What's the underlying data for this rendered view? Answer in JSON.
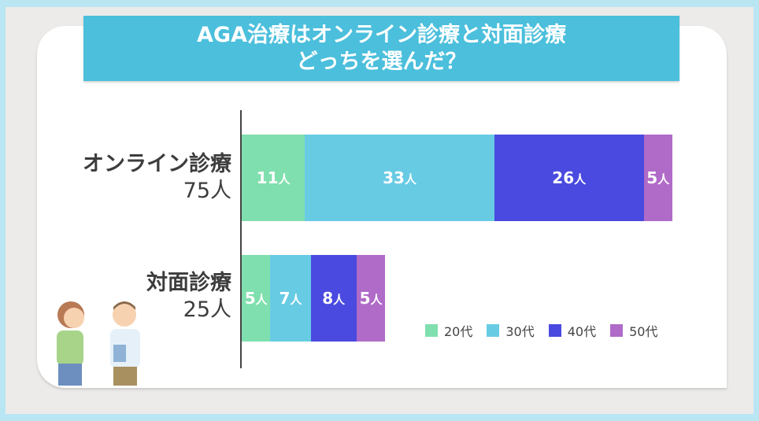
{
  "title_lines": [
    "AGA治療はオンライン診療と対面診療",
    "どっちを選んだ？"
  ],
  "chart_data": {
    "type": "bar",
    "orientation": "horizontal",
    "stacked": true,
    "title": "AGA治療はオンライン診療と対面診療どっちを選んだ？",
    "categories": [
      {
        "label": "オンライン診療",
        "total_label": "75人",
        "total": 75
      },
      {
        "label": "対面診療",
        "total_label": "25人",
        "total": 25
      }
    ],
    "unit": "人",
    "series": [
      {
        "name": "20代",
        "color": "#80dfae",
        "values": [
          11,
          5
        ]
      },
      {
        "name": "30代",
        "color": "#68cbe4",
        "values": [
          33,
          7
        ]
      },
      {
        "name": "40代",
        "color": "#4a4ae0",
        "values": [
          26,
          8
        ]
      },
      {
        "name": "50代",
        "color": "#b06bc8",
        "values": [
          5,
          5
        ]
      }
    ],
    "xlim": [
      0,
      75
    ],
    "grid": false,
    "legend": "bottom-right"
  }
}
